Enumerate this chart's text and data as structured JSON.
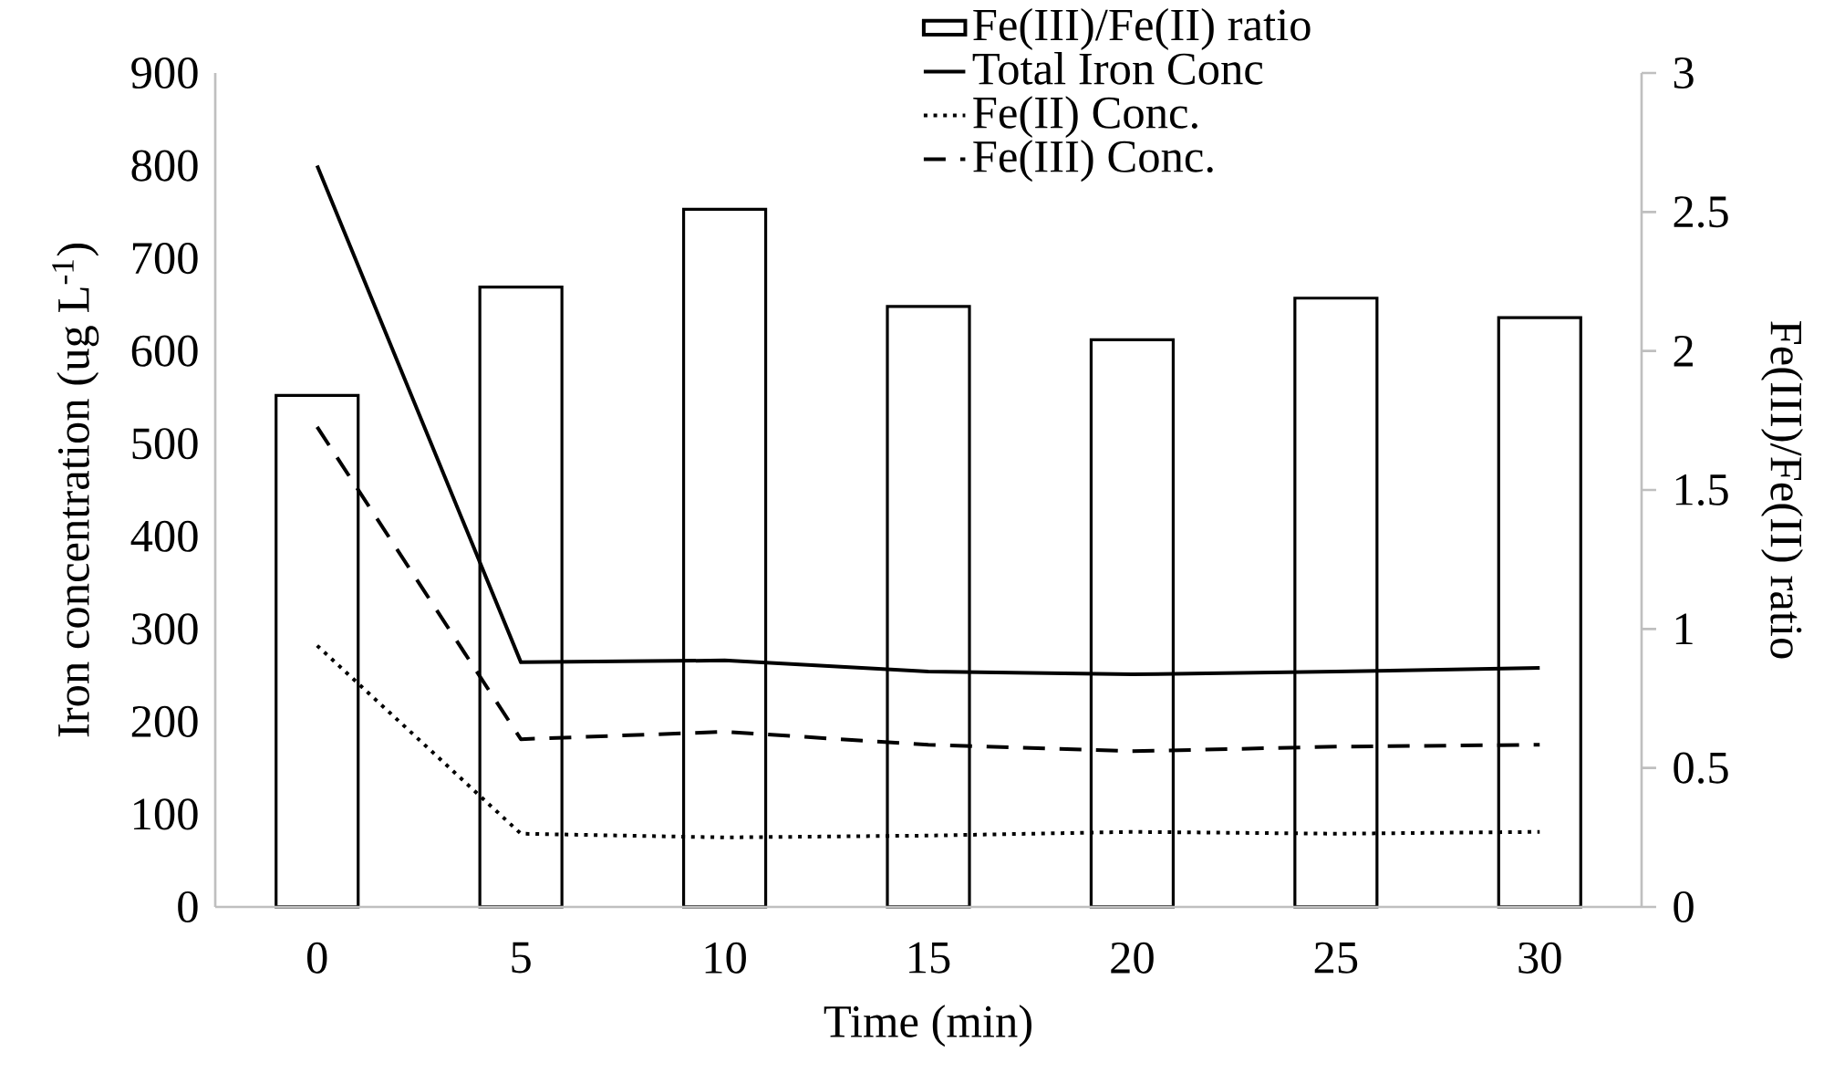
{
  "chart_data": {
    "type": "line",
    "xlabel": "Time (min)",
    "ylabel": "Iron concentration (ug L$^{-1}$)",
    "y2label": "Fe(III)/Fe(II) ratio",
    "categories": [
      "0",
      "5",
      "10",
      "15",
      "20",
      "25",
      "30"
    ],
    "ylim": [
      0,
      900
    ],
    "yticks": [
      0,
      100,
      200,
      300,
      400,
      500,
      600,
      700,
      800,
      900
    ],
    "y2lim": [
      0,
      3
    ],
    "y2ticks": [
      0,
      0.5,
      1,
      1.5,
      2,
      2.5,
      3
    ],
    "legend": "top",
    "series": [
      {
        "name": "Fe(III)/Fe(II) ratio",
        "type": "bar",
        "axis": "y2",
        "color": "#ffffff",
        "values": [
          1.84,
          2.23,
          2.51,
          2.16,
          2.04,
          2.19,
          2.12
        ]
      },
      {
        "name": "Total Iron Conc",
        "color": "#000000",
        "line_style": "solid",
        "values": [
          800,
          264,
          266,
          254,
          251,
          254,
          258
        ]
      },
      {
        "name": "Fe(II) Conc.",
        "color": "#000000",
        "line_style": "dotted",
        "values": [
          282,
          79,
          75,
          77,
          81,
          79,
          81
        ]
      },
      {
        "name": "Fe(III) Conc.",
        "color": "#000000",
        "line_style": "dashed",
        "values": [
          518,
          181,
          189,
          175,
          168,
          173,
          175
        ]
      }
    ]
  }
}
